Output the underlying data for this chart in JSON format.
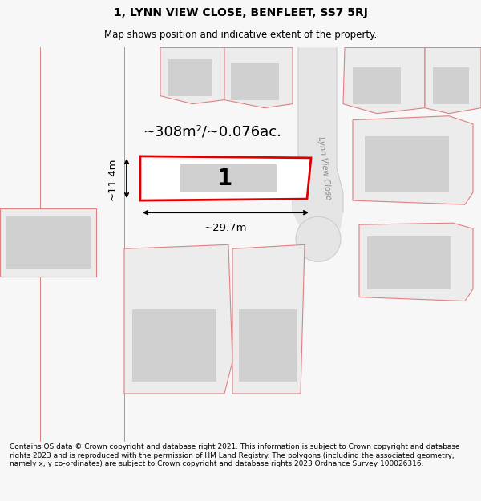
{
  "title": "1, LYNN VIEW CLOSE, BENFLEET, SS7 5RJ",
  "subtitle": "Map shows position and indicative extent of the property.",
  "footer": "Contains OS data © Crown copyright and database right 2021. This information is subject to Crown copyright and database rights 2023 and is reproduced with the permission of HM Land Registry. The polygons (including the associated geometry, namely x, y co-ordinates) are subject to Crown copyright and database rights 2023 Ordnance Survey 100026316.",
  "area_label": "~308m²/~0.076ac.",
  "width_label": "~29.7m",
  "height_label": "~11.4m",
  "plot_number": "1",
  "road_label": "Lynn View Close",
  "bg_color": "#f7f7f7",
  "map_bg": "#ffffff",
  "plot_fill": "#ffffff",
  "plot_edge": "#dd0000",
  "building_fill": "#d0d0d0",
  "neighbor_fill": "#ececec",
  "neighbor_edge": "#e08080",
  "road_fill": "#e0e0e0"
}
